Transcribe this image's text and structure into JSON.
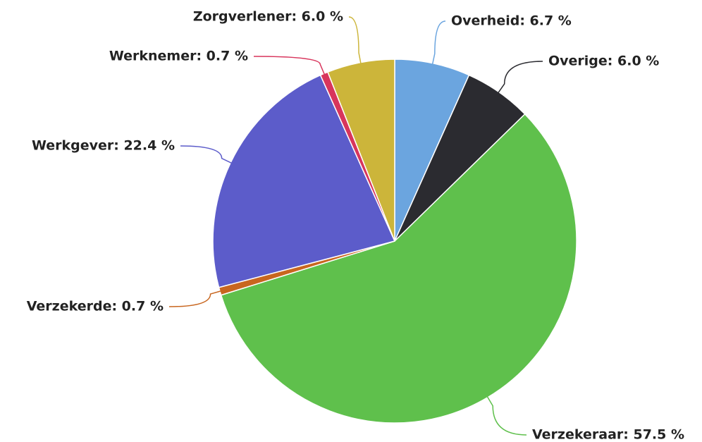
{
  "chart_data": {
    "type": "pie",
    "values": [
      6.7,
      6.0,
      57.5,
      0.7,
      22.4,
      0.7,
      6.0
    ],
    "value_labels": [
      "Overheid: 6.7 %",
      "Overige: 6.0 %",
      "Verzekeraar: 57.5 %",
      "Verzekerde: 0.7 %",
      "Werkgever: 22.4 %",
      "Werknemer: 0.7 %",
      "Zorgverlener: 6.0 %"
    ],
    "colors": [
      "#6ba5df",
      "#2b2b30",
      "#5fc04c",
      "#c8661f",
      "#5c5cca",
      "#d8355c",
      "#ccb53a"
    ]
  }
}
